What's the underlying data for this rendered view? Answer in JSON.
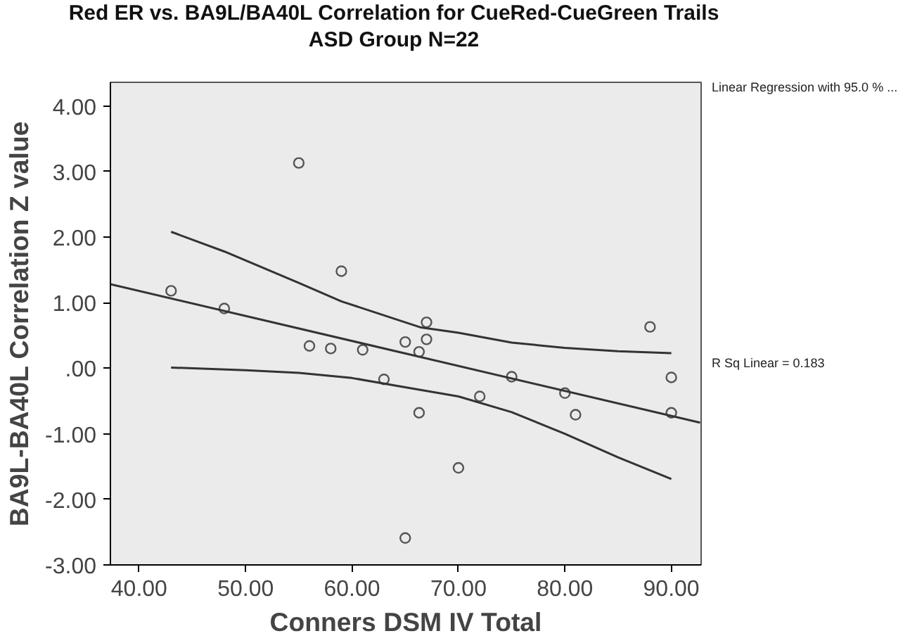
{
  "chart_data": {
    "type": "scatter",
    "title": "Red ER vs. BA9L/BA40L Correlation for CueRed-CueGreen Trails",
    "subtitle": "ASD Group N=22",
    "xlabel": "Conners DSM IV Total",
    "ylabel": "BA9L-BA40L Correlation Z value",
    "series": [
      {
        "color": "#555555",
        "marker": "circle",
        "x": [
          43.0,
          48.0,
          55.0,
          56.0,
          58.0,
          59.0,
          61.0,
          63.0,
          65.0,
          65.0,
          66.3,
          66.3,
          67.0,
          67.0,
          70.0,
          72.0,
          75.0,
          80.0,
          81.0,
          88.0,
          90.0,
          90.0
        ],
        "values": [
          1.18,
          0.91,
          3.13,
          0.34,
          0.3,
          1.48,
          0.28,
          -0.17,
          0.4,
          -2.59,
          0.25,
          -0.68,
          0.7,
          0.44,
          -1.52,
          -0.43,
          -0.13,
          -0.38,
          -0.71,
          0.63,
          -0.14,
          -0.68
        ]
      },
      {
        "type": "line",
        "color": "#333333",
        "marker": "none",
        "x": [
          37.3,
          92.7
        ],
        "values": [
          1.28,
          -0.83
        ]
      },
      {
        "type": "line",
        "color": "#333333",
        "marker": "none",
        "x": [
          43,
          48,
          55,
          59,
          66.5,
          70,
          75,
          80,
          85,
          90
        ],
        "values": [
          2.08,
          1.78,
          1.3,
          1.02,
          0.62,
          0.54,
          0.39,
          0.31,
          0.26,
          0.23
        ]
      },
      {
        "type": "line",
        "color": "#333333",
        "marker": "none",
        "x": [
          43,
          50,
          55,
          60,
          65,
          70,
          75,
          80,
          85,
          90
        ],
        "values": [
          0.01,
          -0.03,
          -0.07,
          -0.15,
          -0.29,
          -0.43,
          -0.67,
          -1.0,
          -1.36,
          -1.69
        ]
      }
    ],
    "xlim": [
      37.3,
      92.8
    ],
    "ylim": [
      -3.0,
      4.36
    ],
    "xticks": [
      {
        "value": 40,
        "label": "40.00"
      },
      {
        "value": 50,
        "label": "50.00"
      },
      {
        "value": 60,
        "label": "60.00"
      },
      {
        "value": 70,
        "label": "70.00"
      },
      {
        "value": 80,
        "label": "80.00"
      },
      {
        "value": 90,
        "label": "90.00"
      }
    ],
    "yticks": [
      {
        "value": -3,
        "label": "-3.00"
      },
      {
        "value": -2,
        "label": "-2.00"
      },
      {
        "value": -1,
        "label": "-1.00"
      },
      {
        "value": 0,
        "label": ".00"
      },
      {
        "value": 1,
        "label": "1.00"
      },
      {
        "value": 2,
        "label": "2.00"
      },
      {
        "value": 3,
        "label": "3.00"
      },
      {
        "value": 4,
        "label": "4.00"
      }
    ],
    "grid": false,
    "annotations": [
      "Linear Regression with 95.0 % ...",
      "R Sq Linear = 0.183"
    ]
  }
}
